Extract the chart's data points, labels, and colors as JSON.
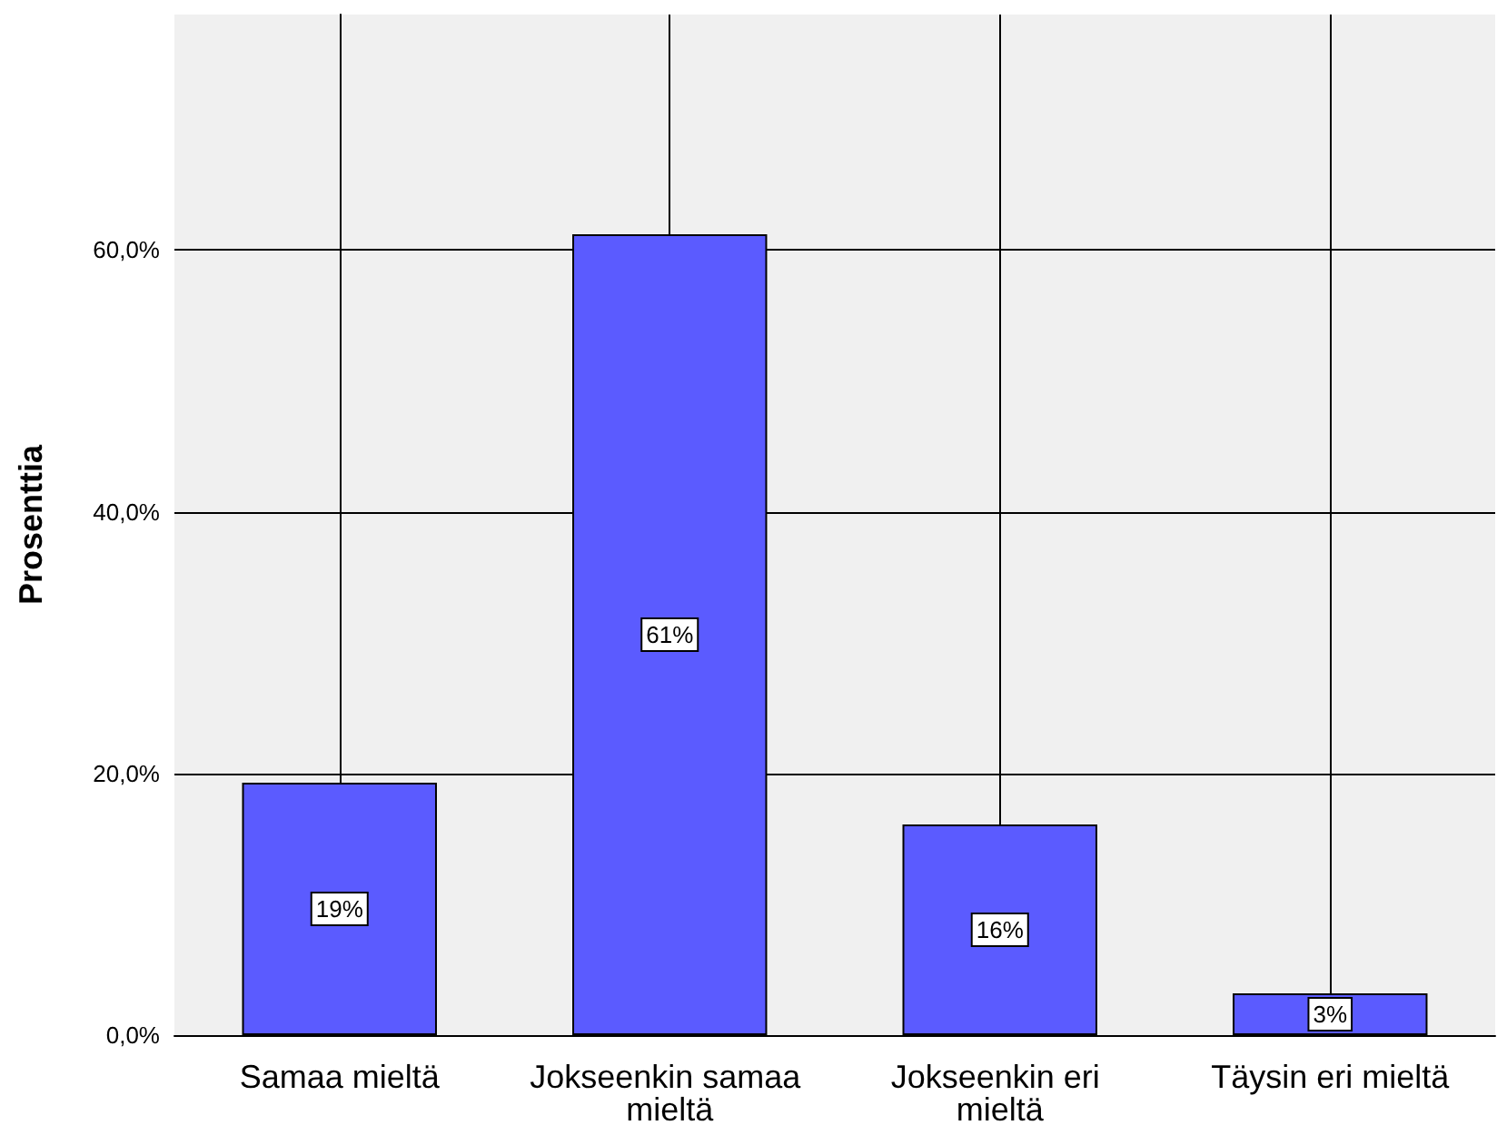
{
  "chart_data": {
    "type": "bar",
    "ylabel": "Prosenttia",
    "categories": [
      "Samaa mieltä",
      "Jokseenkin samaa mieltä",
      "Jokseenkin eri mieltä",
      "Täysin eri mieltä"
    ],
    "values": [
      19.3,
      61.2,
      16.1,
      3.2
    ],
    "color": "#5b5bff",
    "value_labels": [
      "19%",
      "61%",
      "16%",
      "3%"
    ],
    "ylim": [
      0,
      78
    ],
    "yticks": [
      {
        "value": 0,
        "label": "0,0%"
      },
      {
        "value": 20,
        "label": "20,0%"
      },
      {
        "value": 40,
        "label": "40,0%"
      },
      {
        "value": 60,
        "label": "60,0%"
      }
    ],
    "grid": true
  }
}
